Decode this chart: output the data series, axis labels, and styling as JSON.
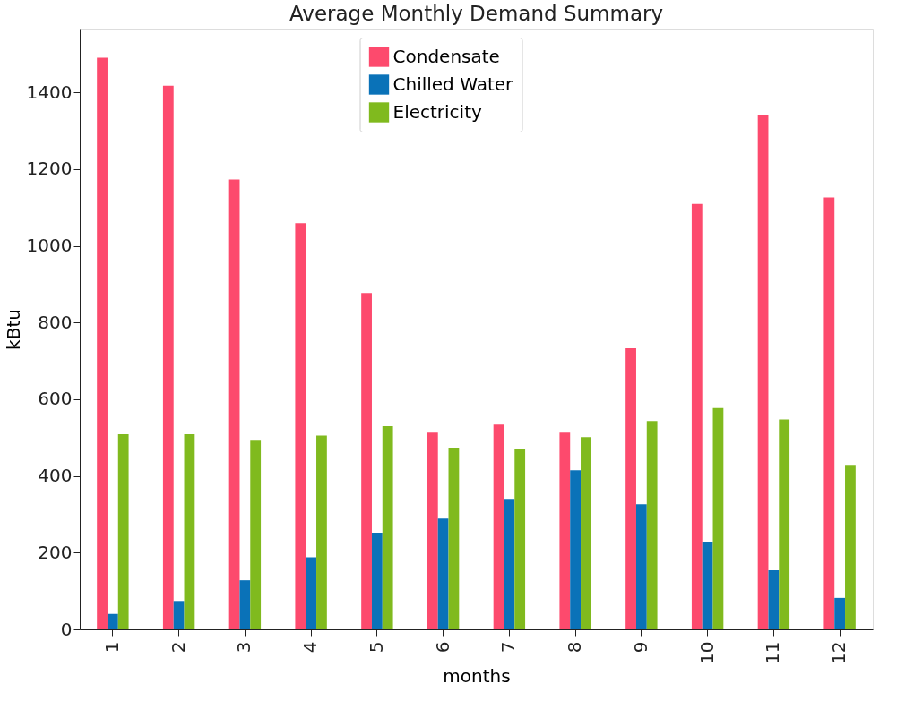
{
  "chart_data": {
    "type": "bar",
    "title": "Average Monthly Demand Summary",
    "xlabel": "months",
    "ylabel": "kBtu",
    "categories": [
      "1",
      "2",
      "3",
      "4",
      "5",
      "6",
      "7",
      "8",
      "9",
      "10",
      "11",
      "12"
    ],
    "series": [
      {
        "name": "Condensate",
        "color": "#fd4a6d",
        "values": [
          1490,
          1417,
          1173,
          1059,
          877,
          513,
          534,
          513,
          733,
          1109,
          1342,
          1126
        ]
      },
      {
        "name": "Chilled Water",
        "color": "#0a72b8",
        "values": [
          40,
          74,
          128,
          188,
          252,
          289,
          340,
          415,
          326,
          229,
          154,
          82
        ]
      },
      {
        "name": "Electricity",
        "color": "#80ba1e",
        "values": [
          509,
          509,
          492,
          505,
          530,
          474,
          470,
          501,
          543,
          577,
          547,
          429
        ]
      }
    ],
    "ylim": [
      0,
      1566
    ],
    "yticks": [
      0,
      200,
      400,
      600,
      800,
      1000,
      1200,
      1400
    ],
    "grid": false,
    "legend": "top"
  }
}
